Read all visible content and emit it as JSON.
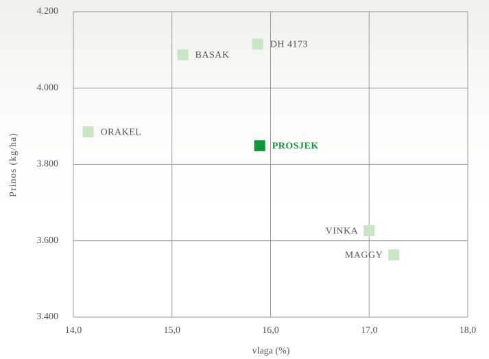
{
  "chart_data": {
    "type": "scatter",
    "x_label": "vlaga (%)",
    "y_label": "Prinos (kg/ha)",
    "xlim": [
      14.0,
      18.0
    ],
    "ylim": [
      3400,
      4200
    ],
    "xticks": [
      {
        "value": 14,
        "label": "14,0"
      },
      {
        "value": 15,
        "label": "15,0"
      },
      {
        "value": 16,
        "label": "16,0"
      },
      {
        "value": 17,
        "label": "17,0"
      },
      {
        "value": 18,
        "label": "18,0"
      }
    ],
    "yticks": [
      {
        "value": 3400,
        "label": "3.400"
      },
      {
        "value": 3600,
        "label": "3.600"
      },
      {
        "value": 3800,
        "label": "3.800"
      },
      {
        "value": 4000,
        "label": "4.000"
      },
      {
        "value": 4200,
        "label": "4.200"
      }
    ],
    "grid": true,
    "points": [
      {
        "label": "ORAKEL",
        "x": 14.15,
        "y": 3885,
        "color": "#c9e5c3"
      },
      {
        "label": "BASAK",
        "x": 15.11,
        "y": 4087,
        "color": "#c9e5c3"
      },
      {
        "label": "DH 4173",
        "x": 15.87,
        "y": 4115,
        "color": "#c9e5c3"
      },
      {
        "label": "PROSJEK",
        "x": 15.89,
        "y": 3849,
        "color": "#13973a",
        "bold": true
      },
      {
        "label": "VINKA",
        "x": 17.0,
        "y": 3626,
        "color": "#c9e5c3"
      },
      {
        "label": "MAGGY",
        "x": 17.25,
        "y": 3563,
        "color": "#c9e5c3"
      }
    ]
  }
}
